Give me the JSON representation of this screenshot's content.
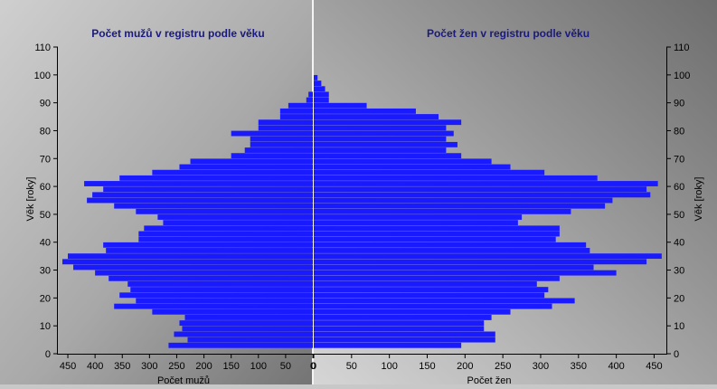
{
  "chart_data": {
    "type": "bar",
    "orientation": "horizontal-population-pyramid",
    "y_label_left": "Věk [roky]",
    "y_label_right": "Věk [roky]",
    "y_ticks": [
      0,
      10,
      20,
      30,
      40,
      50,
      60,
      70,
      80,
      90,
      100,
      110
    ],
    "ylim": [
      0,
      110
    ],
    "grid": false,
    "colors": {
      "bar": "#1a1aff",
      "title": "#1a1a80",
      "panel_dark": "#787878",
      "panel_light": "#c4c4c4"
    },
    "left_panel": {
      "title": "Počet mužů v registru podle věku",
      "xlabel": "Počet mužů",
      "x_ticks": [
        450,
        400,
        350,
        300,
        250,
        200,
        150,
        100,
        50,
        0
      ],
      "xlim": [
        0,
        465
      ],
      "ages": [
        3,
        5,
        7,
        9,
        11,
        13,
        15,
        17,
        19,
        21,
        23,
        25,
        27,
        29,
        31,
        33,
        35,
        37,
        39,
        41,
        43,
        45,
        47,
        49,
        51,
        53,
        55,
        57,
        59,
        61,
        63,
        65,
        67,
        69,
        71,
        73,
        75,
        77,
        79,
        81,
        83,
        85,
        87,
        89,
        91,
        93
      ],
      "values": [
        265,
        230,
        255,
        240,
        245,
        235,
        295,
        365,
        325,
        355,
        335,
        340,
        375,
        400,
        440,
        460,
        450,
        380,
        385,
        320,
        320,
        310,
        275,
        285,
        325,
        365,
        415,
        405,
        385,
        420,
        355,
        295,
        245,
        225,
        150,
        125,
        115,
        115,
        150,
        100,
        100,
        60,
        60,
        45,
        12,
        8
      ]
    },
    "right_panel": {
      "title": "Počet žen v registru podle věku",
      "xlabel": "Počet žen",
      "x_ticks": [
        0,
        50,
        100,
        150,
        200,
        250,
        300,
        350,
        400,
        450
      ],
      "xlim": [
        0,
        465
      ],
      "ages": [
        3,
        5,
        7,
        9,
        11,
        13,
        15,
        17,
        19,
        21,
        23,
        25,
        27,
        29,
        31,
        33,
        35,
        37,
        39,
        41,
        43,
        45,
        47,
        49,
        51,
        53,
        55,
        57,
        59,
        61,
        63,
        65,
        67,
        69,
        71,
        73,
        75,
        77,
        79,
        81,
        83,
        85,
        87,
        89,
        91,
        93,
        95,
        97,
        99
      ],
      "values": [
        195,
        240,
        240,
        225,
        225,
        235,
        260,
        315,
        345,
        305,
        310,
        295,
        325,
        400,
        370,
        440,
        460,
        365,
        360,
        320,
        325,
        325,
        270,
        275,
        340,
        385,
        395,
        445,
        440,
        455,
        375,
        305,
        260,
        235,
        195,
        175,
        190,
        175,
        185,
        175,
        195,
        165,
        135,
        70,
        20,
        20,
        15,
        10,
        5
      ]
    }
  }
}
